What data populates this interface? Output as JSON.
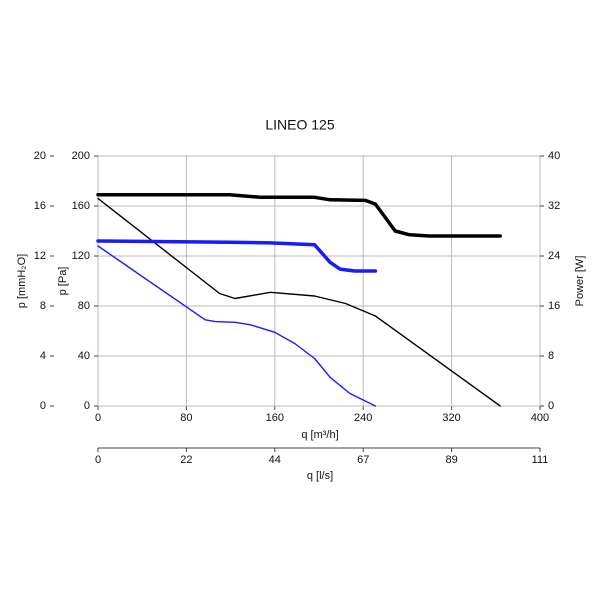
{
  "chart_data": {
    "type": "line",
    "title": "LINEO 125",
    "xlabel": "q [m³/h]",
    "ylabel": "p [Pa]",
    "y3label": "p [mmH₂O]",
    "y2label": "Power [W]",
    "x2label": "q [l/s]",
    "xlim": [
      0,
      400
    ],
    "xticks": [
      0,
      80,
      160,
      240,
      320,
      400
    ],
    "ylim": [
      0,
      200
    ],
    "yticks": [
      0,
      40,
      80,
      120,
      160,
      200
    ],
    "y3lim": [
      0,
      20
    ],
    "y3ticks": [
      0,
      4,
      8,
      12,
      16,
      20
    ],
    "y2lim": [
      0,
      40
    ],
    "y2ticks": [
      0,
      8,
      16,
      24,
      32,
      40
    ],
    "x2lim": [
      0,
      111.11
    ],
    "x2ticks": [
      0,
      {
        "value": 22.22,
        "label": "22"
      },
      {
        "value": 44.44,
        "label": "44"
      },
      {
        "value": 66.67,
        "label": "67"
      },
      {
        "value": 88.89,
        "label": "89"
      },
      {
        "value": 111.11,
        "label": "111"
      }
    ],
    "grid": true,
    "series": [
      {
        "color": "#000000",
        "x": [
          0,
          110,
          124,
          156,
          196,
          224,
          251,
          364
        ],
        "values": [
          166,
          90,
          86,
          91,
          88,
          82,
          72,
          0
        ]
      },
      {
        "color": "#1a1aff",
        "x": [
          0,
          97,
          106,
          124,
          138,
          160,
          178,
          196,
          210,
          228,
          251
        ],
        "values": [
          128,
          69,
          67.5,
          67,
          65,
          59,
          50,
          38,
          23,
          10,
          0
        ]
      },
      {
        "color": "#000000",
        "axis": "y2",
        "x": [
          0,
          119,
          147,
          196,
          210,
          242,
          251,
          269,
          282,
          300,
          364
        ],
        "values": [
          33.8,
          33.8,
          33.4,
          33.4,
          33.0,
          32.9,
          32.3,
          28,
          27.4,
          27.2,
          27.2
        ]
      },
      {
        "color": "#1a1aff",
        "axis": "y2",
        "x": [
          0,
          119,
          156,
          196,
          210,
          219,
          232,
          251
        ],
        "values": [
          26.4,
          26.2,
          26.1,
          25.8,
          23,
          21.9,
          21.6,
          21.6
        ]
      }
    ]
  }
}
